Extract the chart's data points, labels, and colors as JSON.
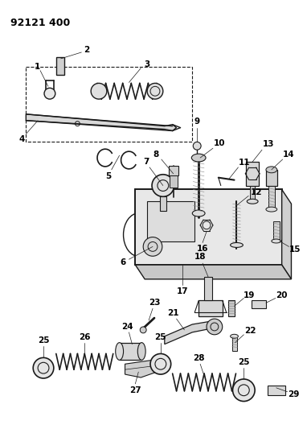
{
  "title": "92121 400",
  "bg_color": "#ffffff",
  "line_color": "#1a1a1a",
  "fig_width": 3.82,
  "fig_height": 5.33,
  "dpi": 100
}
